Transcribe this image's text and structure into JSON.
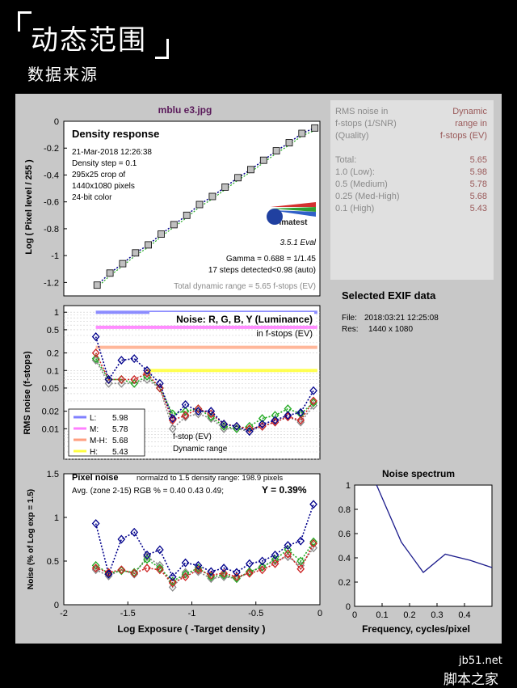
{
  "header": {
    "title": "动态范围",
    "subtitle": "数据来源"
  },
  "figure_title": "mblu e3.jpg",
  "chart_data": [
    {
      "type": "scatter",
      "name": "density",
      "title": "Density response",
      "info": [
        "21-Mar-2018 12:26:38",
        "Density step = 0.1",
        "295x25 crop of",
        "1440x1080 pixels",
        "24-bit color"
      ],
      "ylabel": "Log ( Pixel level / 255 )",
      "xlim": [
        -2,
        0
      ],
      "ylim": [
        -1.3,
        0
      ],
      "yticks": [
        "0",
        "-0.2",
        "-0.4",
        "-0.6",
        "-0.8",
        "-1",
        "-1.2"
      ],
      "x": [
        -1.74,
        -1.64,
        -1.54,
        -1.44,
        -1.34,
        -1.24,
        -1.14,
        -1.04,
        -0.94,
        -0.84,
        -0.74,
        -0.64,
        -0.54,
        -0.44,
        -0.34,
        -0.24,
        -0.14,
        -0.04
      ],
      "y": [
        -1.22,
        -1.13,
        -1.06,
        -0.98,
        -0.92,
        -0.84,
        -0.77,
        -0.7,
        -0.62,
        -0.56,
        -0.49,
        -0.42,
        -0.36,
        -0.29,
        -0.22,
        -0.16,
        -0.09,
        -0.05
      ],
      "gamma": "Gamma = 0.688 = 1/1.45",
      "steps": "17 steps detected<0.98 (auto)",
      "total": "Total dynamic range = 5.65 f-stops (EV)",
      "logo": "imatest",
      "version": "3.5.1  Eval"
    },
    {
      "type": "line",
      "name": "noise-fstops",
      "title": "Noise: R, G, B, Y (Luminance)",
      "subtitle": "in f-stops (EV)",
      "ylabel": "RMS noise (f-stops)",
      "xlim": [
        -2,
        0
      ],
      "ylim": [
        0.003,
        1.3
      ],
      "yscale": "log",
      "yticks": [
        "1",
        "0.5",
        "0.2",
        "0.1",
        "0.05",
        "0.02",
        "0.01"
      ],
      "x": [
        -1.75,
        -1.65,
        -1.55,
        -1.45,
        -1.35,
        -1.25,
        -1.15,
        -1.05,
        -0.95,
        -0.85,
        -0.75,
        -0.65,
        -0.55,
        -0.45,
        -0.35,
        -0.25,
        -0.15,
        -0.05
      ],
      "series": [
        {
          "color": "#00008b",
          "values": [
            0.38,
            0.07,
            0.15,
            0.16,
            0.1,
            0.06,
            0.015,
            0.026,
            0.02,
            0.02,
            0.012,
            0.011,
            0.009,
            0.012,
            0.014,
            0.017,
            0.019,
            0.045
          ]
        },
        {
          "color": "#cc2222",
          "values": [
            0.2,
            0.07,
            0.07,
            0.07,
            0.09,
            0.05,
            0.014,
            0.017,
            0.022,
            0.018,
            0.012,
            0.011,
            0.01,
            0.011,
            0.013,
            0.016,
            0.014,
            0.03
          ]
        },
        {
          "color": "#22aa22",
          "values": [
            0.16,
            0.07,
            0.07,
            0.06,
            0.08,
            0.05,
            0.018,
            0.02,
            0.022,
            0.016,
            0.011,
            0.01,
            0.011,
            0.015,
            0.017,
            0.022,
            0.018,
            0.028
          ]
        },
        {
          "color": "#888888",
          "values": [
            0.15,
            0.06,
            0.06,
            0.06,
            0.07,
            0.05,
            0.01,
            0.016,
            0.018,
            0.015,
            0.01,
            0.01,
            0.009,
            0.011,
            0.013,
            0.016,
            0.013,
            0.025
          ]
        }
      ],
      "legend": [
        {
          "label": "L:",
          "value": "5.98",
          "color": "#8080ff"
        },
        {
          "label": "M:",
          "value": "5.78",
          "color": "#ff80ff"
        },
        {
          "label": "M-H:",
          "value": "5.68",
          "color": "#ff9f80"
        },
        {
          "label": "H:",
          "value": "5.43",
          "color": "#ffff40"
        }
      ],
      "legend_note1": "f-stop (EV)",
      "legend_note2": "Dynamic range",
      "ranges": [
        {
          "start": -1.75,
          "end": -0.02,
          "level": 1.0,
          "color": "#8080ff"
        },
        {
          "start": -1.75,
          "end": -0.02,
          "level": 0.55,
          "color": "#ff80ff"
        },
        {
          "start": -1.75,
          "end": -0.02,
          "level": 0.25,
          "color": "#ffb090"
        },
        {
          "start": -1.35,
          "end": -0.02,
          "level": 0.1,
          "color": "#ffff40"
        }
      ]
    },
    {
      "type": "line",
      "name": "pixel-noise",
      "title": "Pixel noise",
      "note": "normalzd to 1.5 density range: 198.9 pixels",
      "avg": "Avg. (zone 2-15) RGB % = 0.40  0.43  0.49;",
      "yval": "Y = 0.39%",
      "xlabel": "Log Exposure ( -Target density )",
      "ylabel": "Noise (% of Log exp = 1.5)",
      "xlim": [
        -2,
        0
      ],
      "ylim": [
        0,
        1.5
      ],
      "xticks": [
        "-2",
        "-1.5",
        "-1",
        "-0.5",
        "0"
      ],
      "yticks": [
        "0",
        "0.5",
        "1",
        "1.5"
      ],
      "x": [
        -1.75,
        -1.65,
        -1.55,
        -1.45,
        -1.35,
        -1.25,
        -1.15,
        -1.05,
        -0.95,
        -0.85,
        -0.75,
        -0.65,
        -0.55,
        -0.45,
        -0.35,
        -0.25,
        -0.15,
        -0.05
      ],
      "series": [
        {
          "color": "#00008b",
          "values": [
            0.93,
            0.35,
            0.75,
            0.83,
            0.57,
            0.63,
            0.32,
            0.48,
            0.45,
            0.38,
            0.42,
            0.37,
            0.47,
            0.5,
            0.57,
            0.68,
            0.73,
            1.15
          ]
        },
        {
          "color": "#cc2222",
          "values": [
            0.42,
            0.37,
            0.4,
            0.36,
            0.42,
            0.4,
            0.25,
            0.32,
            0.4,
            0.34,
            0.36,
            0.32,
            0.36,
            0.4,
            0.47,
            0.58,
            0.41,
            0.7
          ]
        },
        {
          "color": "#22aa22",
          "values": [
            0.45,
            0.36,
            0.39,
            0.37,
            0.52,
            0.42,
            0.27,
            0.35,
            0.42,
            0.32,
            0.34,
            0.3,
            0.38,
            0.43,
            0.52,
            0.63,
            0.5,
            0.72
          ]
        },
        {
          "color": "#888888",
          "values": [
            0.4,
            0.33,
            0.4,
            0.35,
            0.55,
            0.45,
            0.2,
            0.37,
            0.38,
            0.3,
            0.32,
            0.3,
            0.37,
            0.44,
            0.5,
            0.55,
            0.45,
            0.65
          ]
        }
      ]
    },
    {
      "type": "line",
      "name": "noise-spectrum",
      "title": "Noise spectrum",
      "xlabel": "Frequency, cycles/pixel",
      "xlim": [
        0,
        0.5
      ],
      "ylim": [
        0,
        1
      ],
      "xticks": [
        "0",
        "0.1",
        "0.2",
        "0.3",
        "0.4"
      ],
      "yticks": [
        "0",
        "0.2",
        "0.4",
        "0.6",
        "0.8",
        "1"
      ],
      "x": [
        0.08,
        0.17,
        0.25,
        0.33,
        0.42,
        0.5
      ],
      "y": [
        1.0,
        0.53,
        0.28,
        0.43,
        0.38,
        0.32
      ]
    }
  ],
  "rms_table": {
    "head_left": [
      "RMS noise in",
      "f-stops (1/SNR)",
      "(Quality)"
    ],
    "head_right": [
      "Dynamic",
      "range in",
      "f-stops (EV)"
    ],
    "rows": [
      {
        "label": "Total:",
        "value": "5.65"
      },
      {
        "label": "1.0  (Low):",
        "value": "5.98"
      },
      {
        "label": "0.5  (Medium)",
        "value": "5.78"
      },
      {
        "label": "0.25 (Med-High)",
        "value": "5.68"
      },
      {
        "label": "0.1  (High)",
        "value": "5.43"
      }
    ]
  },
  "exif": {
    "title": "Selected EXIF data",
    "file_label": "File:",
    "file_value": "2018:03:21 12:25:08",
    "res_label": "Res:",
    "res_value": "1440 x 1080"
  },
  "watermark": {
    "site": "jb51.net",
    "name": "脚本之家"
  }
}
